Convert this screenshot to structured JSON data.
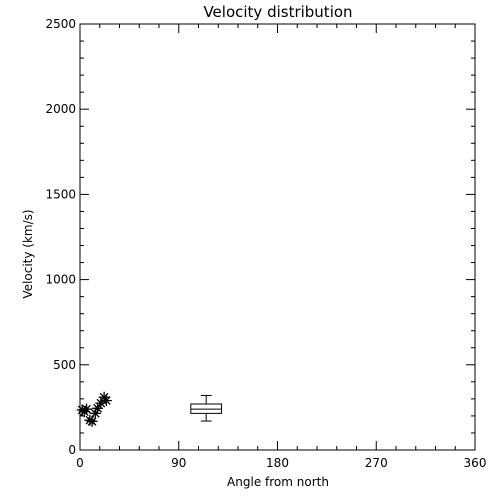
{
  "chart_data": {
    "type": "scatter",
    "title": "Velocity distribution",
    "xlabel": "Angle from north",
    "ylabel": "Velocity (km/s)",
    "xlim": [
      0,
      360
    ],
    "ylim": [
      0,
      2500
    ],
    "xticks": [
      0,
      90,
      180,
      270,
      360
    ],
    "yticks": [
      0,
      500,
      1000,
      1500,
      2000,
      2500
    ],
    "grid": false,
    "legend": "none",
    "series": [
      {
        "marker": "asterisk",
        "color": "#000000",
        "points": [
          {
            "x": 2,
            "y": 235
          },
          {
            "x": 4,
            "y": 225
          },
          {
            "x": 6,
            "y": 240
          },
          {
            "x": 9,
            "y": 175
          },
          {
            "x": 11,
            "y": 168
          },
          {
            "x": 14,
            "y": 215
          },
          {
            "x": 16,
            "y": 245
          },
          {
            "x": 19,
            "y": 275
          },
          {
            "x": 22,
            "y": 310
          },
          {
            "x": 24,
            "y": 290
          }
        ]
      }
    ],
    "boxplot": {
      "x": 115,
      "width_data": 28,
      "whisker_low": 170,
      "q1": 215,
      "median": 240,
      "q3": 270,
      "whisker_high": 320,
      "color": "#000000"
    }
  }
}
